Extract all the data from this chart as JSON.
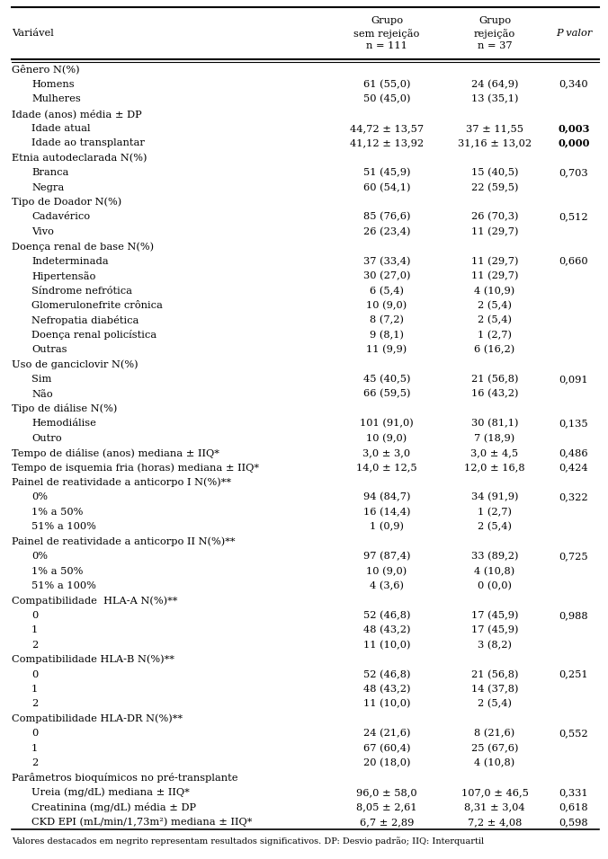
{
  "col_headers": [
    "Variável",
    "Grupo\nsem rejeição\nn = 111",
    "Grupo\nrejeição\nn = 37",
    "P valor"
  ],
  "rows": [
    {
      "label": "Gênero N(%)",
      "indent": 0,
      "c1": "",
      "c2": "",
      "p": "",
      "bold_p": false
    },
    {
      "label": "Homens",
      "indent": 1,
      "c1": "61 (55,0)",
      "c2": "24 (64,9)",
      "p": "0,340",
      "bold_p": false
    },
    {
      "label": "Mulheres",
      "indent": 1,
      "c1": "50 (45,0)",
      "c2": "13 (35,1)",
      "p": "",
      "bold_p": false
    },
    {
      "label": "Idade (anos) média ± DP",
      "indent": 0,
      "c1": "",
      "c2": "",
      "p": "",
      "bold_p": false
    },
    {
      "label": "Idade atual",
      "indent": 1,
      "c1": "44,72 ± 13,57",
      "c2": "37 ± 11,55",
      "p": "0,003",
      "bold_p": true
    },
    {
      "label": "Idade ao transplantar",
      "indent": 1,
      "c1": "41,12 ± 13,92",
      "c2": "31,16 ± 13,02",
      "p": "0,000",
      "bold_p": true
    },
    {
      "label": "Etnia autodeclarada N(%)",
      "indent": 0,
      "c1": "",
      "c2": "",
      "p": "",
      "bold_p": false
    },
    {
      "label": "Branca",
      "indent": 1,
      "c1": "51 (45,9)",
      "c2": "15 (40,5)",
      "p": "0,703",
      "bold_p": false
    },
    {
      "label": "Negra",
      "indent": 1,
      "c1": "60 (54,1)",
      "c2": "22 (59,5)",
      "p": "",
      "bold_p": false
    },
    {
      "label": "Tipo de Doador N(%)",
      "indent": 0,
      "c1": "",
      "c2": "",
      "p": "",
      "bold_p": false
    },
    {
      "label": "Cadavérico",
      "indent": 1,
      "c1": "85 (76,6)",
      "c2": "26 (70,3)",
      "p": "0,512",
      "bold_p": false
    },
    {
      "label": "Vivo",
      "indent": 1,
      "c1": "26 (23,4)",
      "c2": "11 (29,7)",
      "p": "",
      "bold_p": false
    },
    {
      "label": "Doença renal de base N(%)",
      "indent": 0,
      "c1": "",
      "c2": "",
      "p": "",
      "bold_p": false
    },
    {
      "label": "Indeterminada",
      "indent": 1,
      "c1": "37 (33,4)",
      "c2": "11 (29,7)",
      "p": "0,660",
      "bold_p": false
    },
    {
      "label": "Hipertensão",
      "indent": 1,
      "c1": "30 (27,0)",
      "c2": "11 (29,7)",
      "p": "",
      "bold_p": false
    },
    {
      "label": "Síndrome nefrótica",
      "indent": 1,
      "c1": "6 (5,4)",
      "c2": "4 (10,9)",
      "p": "",
      "bold_p": false
    },
    {
      "label": "Glomerulonefrite crônica",
      "indent": 1,
      "c1": "10 (9,0)",
      "c2": "2 (5,4)",
      "p": "",
      "bold_p": false
    },
    {
      "label": "Nefropatia diabética",
      "indent": 1,
      "c1": "8 (7,2)",
      "c2": "2 (5,4)",
      "p": "",
      "bold_p": false
    },
    {
      "label": "Doença renal policística",
      "indent": 1,
      "c1": "9 (8,1)",
      "c2": "1 (2,7)",
      "p": "",
      "bold_p": false
    },
    {
      "label": "Outras",
      "indent": 1,
      "c1": "11 (9,9)",
      "c2": "6 (16,2)",
      "p": "",
      "bold_p": false
    },
    {
      "label": "Uso de ganciclovir N(%)",
      "indent": 0,
      "c1": "",
      "c2": "",
      "p": "",
      "bold_p": false
    },
    {
      "label": "Sim",
      "indent": 1,
      "c1": "45 (40,5)",
      "c2": "21 (56,8)",
      "p": "0,091",
      "bold_p": false
    },
    {
      "label": "Não",
      "indent": 1,
      "c1": "66 (59,5)",
      "c2": "16 (43,2)",
      "p": "",
      "bold_p": false
    },
    {
      "label": "Tipo de diálise N(%)",
      "indent": 0,
      "c1": "",
      "c2": "",
      "p": "",
      "bold_p": false
    },
    {
      "label": "Hemodiálise",
      "indent": 1,
      "c1": "101 (91,0)",
      "c2": "30 (81,1)",
      "p": "0,135",
      "bold_p": false
    },
    {
      "label": "Outro",
      "indent": 1,
      "c1": "10 (9,0)",
      "c2": "7 (18,9)",
      "p": "",
      "bold_p": false
    },
    {
      "label": "Tempo de diálise (anos) mediana ± IIQ*",
      "indent": 0,
      "c1": "3,0 ± 3,0",
      "c2": "3,0 ± 4,5",
      "p": "0,486",
      "bold_p": false
    },
    {
      "label": "Tempo de isquemia fria (horas) mediana ± IIQ*",
      "indent": 0,
      "c1": "14,0 ± 12,5",
      "c2": "12,0 ± 16,8",
      "p": "0,424",
      "bold_p": false
    },
    {
      "label": "Painel de reatividade a anticorpo I N(%)**",
      "indent": 0,
      "c1": "",
      "c2": "",
      "p": "",
      "bold_p": false
    },
    {
      "label": "0%",
      "indent": 1,
      "c1": "94 (84,7)",
      "c2": "34 (91,9)",
      "p": "0,322",
      "bold_p": false
    },
    {
      "label": "1% a 50%",
      "indent": 1,
      "c1": "16 (14,4)",
      "c2": "1 (2,7)",
      "p": "",
      "bold_p": false
    },
    {
      "label": "51% a 100%",
      "indent": 1,
      "c1": "1 (0,9)",
      "c2": "2 (5,4)",
      "p": "",
      "bold_p": false
    },
    {
      "label": "Painel de reatividade a anticorpo II N(%)**",
      "indent": 0,
      "c1": "",
      "c2": "",
      "p": "",
      "bold_p": false
    },
    {
      "label": "0%",
      "indent": 1,
      "c1": "97 (87,4)",
      "c2": "33 (89,2)",
      "p": "0,725",
      "bold_p": false
    },
    {
      "label": "1% a 50%",
      "indent": 1,
      "c1": "10 (9,0)",
      "c2": "4 (10,8)",
      "p": "",
      "bold_p": false
    },
    {
      "label": "51% a 100%",
      "indent": 1,
      "c1": "4 (3,6)",
      "c2": "0 (0,0)",
      "p": "",
      "bold_p": false
    },
    {
      "label": "Compatibilidade  HLA-A N(%)**",
      "indent": 0,
      "c1": "",
      "c2": "",
      "p": "",
      "bold_p": false
    },
    {
      "label": "0",
      "indent": 1,
      "c1": "52 (46,8)",
      "c2": "17 (45,9)",
      "p": "0,988",
      "bold_p": false
    },
    {
      "label": "1",
      "indent": 1,
      "c1": "48 (43,2)",
      "c2": "17 (45,9)",
      "p": "",
      "bold_p": false
    },
    {
      "label": "2",
      "indent": 1,
      "c1": "11 (10,0)",
      "c2": "3 (8,2)",
      "p": "",
      "bold_p": false
    },
    {
      "label": "Compatibilidade HLA-B N(%)**",
      "indent": 0,
      "c1": "",
      "c2": "",
      "p": "",
      "bold_p": false
    },
    {
      "label": "0",
      "indent": 1,
      "c1": "52 (46,8)",
      "c2": "21 (56,8)",
      "p": "0,251",
      "bold_p": false
    },
    {
      "label": "1",
      "indent": 1,
      "c1": "48 (43,2)",
      "c2": "14 (37,8)",
      "p": "",
      "bold_p": false
    },
    {
      "label": "2",
      "indent": 1,
      "c1": "11 (10,0)",
      "c2": "2 (5,4)",
      "p": "",
      "bold_p": false
    },
    {
      "label": "Compatibilidade HLA-DR N(%)**",
      "indent": 0,
      "c1": "",
      "c2": "",
      "p": "",
      "bold_p": false
    },
    {
      "label": "0",
      "indent": 1,
      "c1": "24 (21,6)",
      "c2": "8 (21,6)",
      "p": "0,552",
      "bold_p": false
    },
    {
      "label": "1",
      "indent": 1,
      "c1": "67 (60,4)",
      "c2": "25 (67,6)",
      "p": "",
      "bold_p": false
    },
    {
      "label": "2",
      "indent": 1,
      "c1": "20 (18,0)",
      "c2": "4 (10,8)",
      "p": "",
      "bold_p": false
    },
    {
      "label": "Parâmetros bioquímicos no pré-transplante",
      "indent": 0,
      "c1": "",
      "c2": "",
      "p": "",
      "bold_p": false
    },
    {
      "label": "Ureia (mg/dL) mediana ± IIQ*",
      "indent": 1,
      "c1": "96,0 ± 58,0",
      "c2": "107,0 ± 46,5",
      "p": "0,331",
      "bold_p": false
    },
    {
      "label": "Creatinina (mg/dL) média ± DP",
      "indent": 1,
      "c1": "8,05 ± 2,61",
      "c2": "8,31 ± 3,04",
      "p": "0,618",
      "bold_p": false
    },
    {
      "label": "CKD EPI (mL/min/1,73m²) mediana ± IIQ*",
      "indent": 1,
      "c1": "6,7 ± 2,89",
      "c2": "7,2 ± 4,08",
      "p": "0,598",
      "bold_p": false
    }
  ],
  "footnote": "Valores destacados em negrito representam resultados significativos. DP: Desvio padrão; IIQ: Interquartil",
  "bg_color": "#ffffff",
  "text_color": "#000000",
  "font_size": 8.2,
  "header_font_size": 8.2,
  "fig_width": 6.76,
  "fig_height": 9.56
}
